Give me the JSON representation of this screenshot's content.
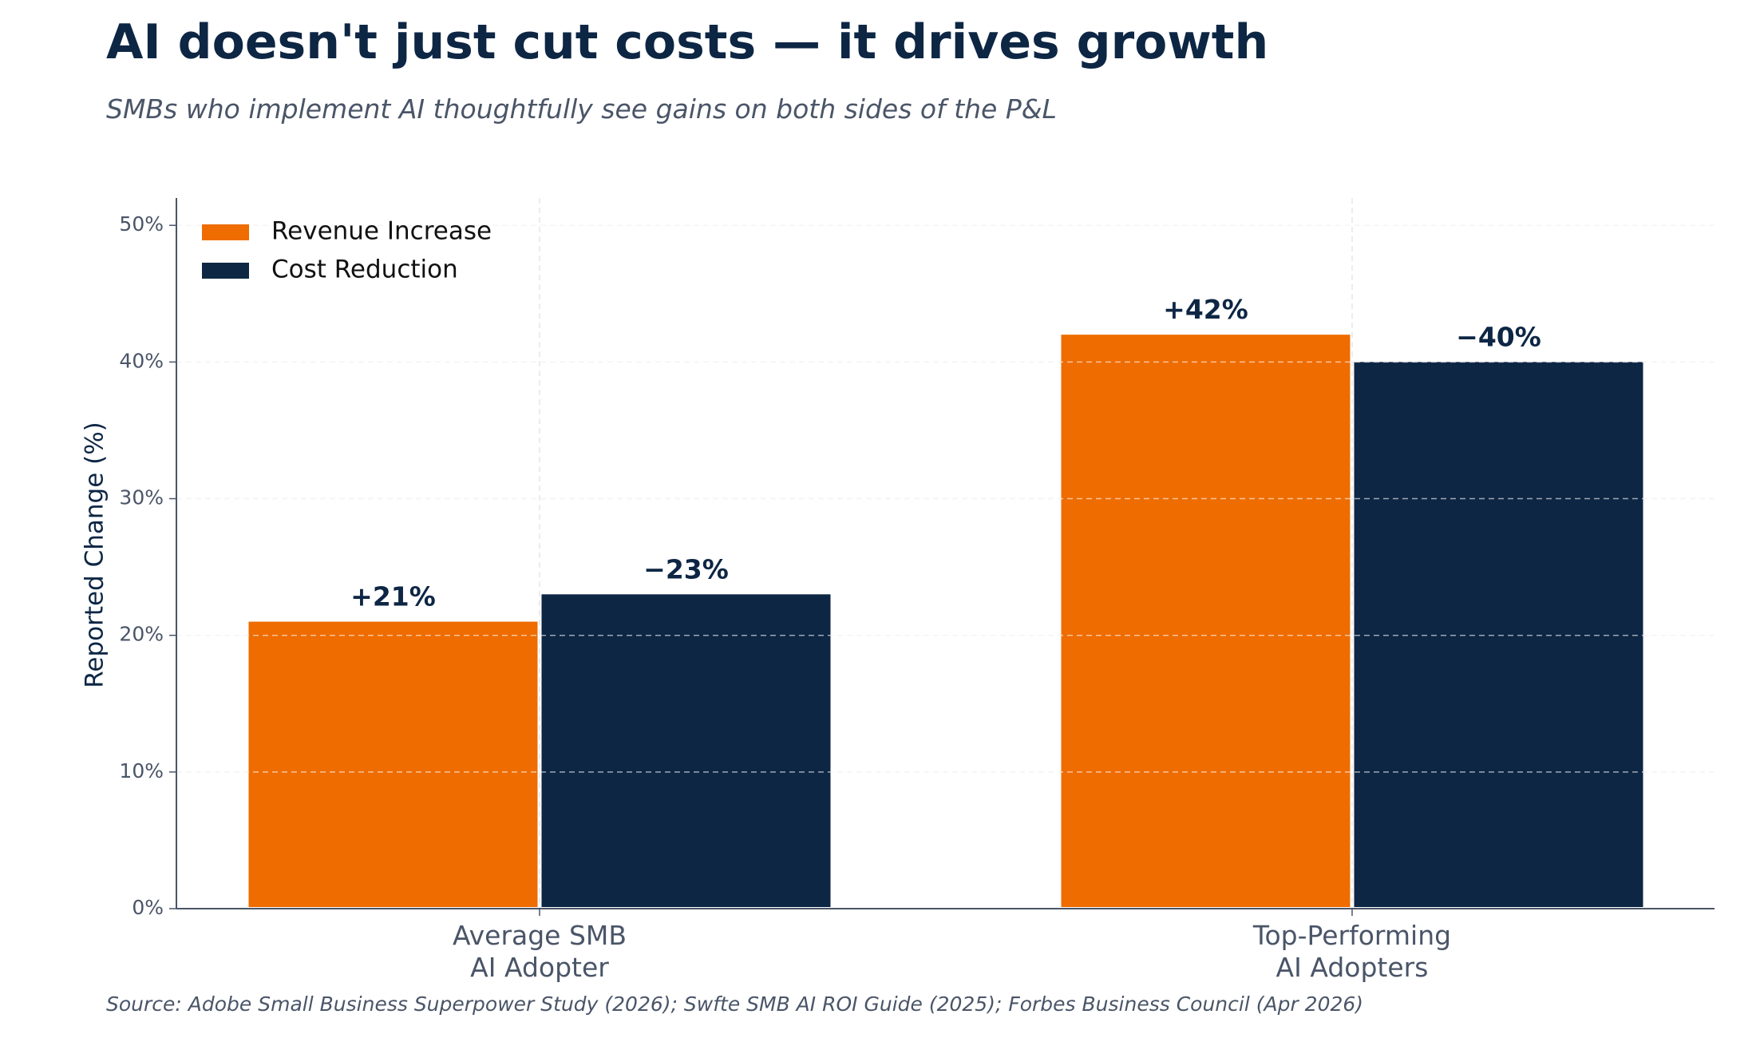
{
  "header": {
    "title": "AI doesn't just cut costs — it drives growth",
    "subtitle": "SMBs who implement AI thoughtfully see gains on both sides of the P&L"
  },
  "footer": {
    "source": "Source: Adobe Small Business Superpower Study (2026); Swfte SMB AI ROI Guide (2025); Forbes Business Council (Apr 2026)"
  },
  "chart_data": {
    "type": "bar",
    "categories": [
      [
        "Average SMB",
        "AI Adopter"
      ],
      [
        "Top-Performing",
        "AI Adopters"
      ]
    ],
    "series": [
      {
        "name": "Revenue Increase",
        "values": [
          21,
          42
        ],
        "labels": [
          "+21%",
          "+42%"
        ],
        "color": "#ee6c00"
      },
      {
        "name": "Cost Reduction",
        "values": [
          23,
          40
        ],
        "labels": [
          "−23%",
          "−40%"
        ],
        "color": "#0d2644"
      }
    ],
    "ylabel": "Reported Change (%)",
    "ylim": [
      0,
      52
    ],
    "yticks": [
      0,
      10,
      20,
      30,
      40,
      50
    ],
    "ytick_labels": [
      "0%",
      "10%",
      "20%",
      "30%",
      "40%",
      "50%"
    ],
    "grid": true,
    "legend_position": "top-left"
  }
}
